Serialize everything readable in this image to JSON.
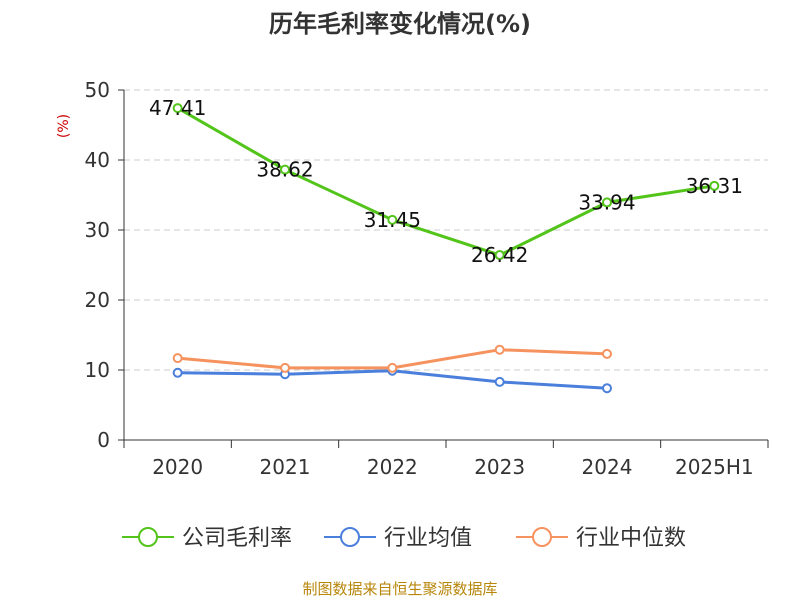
{
  "chart_data": {
    "type": "line",
    "title": "历年毛利率变化情况(%)",
    "ylabel": "(%)",
    "xlabel": "",
    "ylim": [
      0,
      50
    ],
    "yticks": [
      0,
      10,
      20,
      30,
      40,
      50
    ],
    "grid": true,
    "legend_position": "bottom",
    "categories": [
      "2020",
      "2021",
      "2022",
      "2023",
      "2024",
      "2025H1"
    ],
    "series": [
      {
        "name": "公司毛利率",
        "color": "#52c41a",
        "values": [
          47.41,
          38.62,
          31.45,
          26.42,
          33.94,
          36.31
        ],
        "labels": [
          "47.41",
          "38.62",
          "31.45",
          "26.42",
          "33.94",
          "36.31"
        ]
      },
      {
        "name": "行业均值",
        "color": "#4a7fdb",
        "values": [
          9.6,
          9.4,
          9.9,
          8.3,
          7.4,
          null
        ]
      },
      {
        "name": "行业中位数",
        "color": "#f5925e",
        "values": [
          11.7,
          10.3,
          10.3,
          12.9,
          12.3,
          null
        ]
      }
    ]
  },
  "footer": "制图数据来自恒生聚源数据库"
}
